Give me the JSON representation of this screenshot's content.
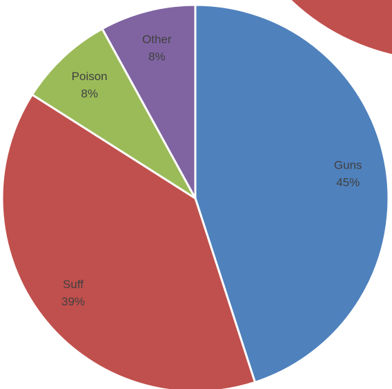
{
  "chart_data": {
    "type": "pie",
    "categories": [
      "Guns",
      "Suff",
      "Poison",
      "Other"
    ],
    "values": [
      45,
      39,
      8,
      8
    ],
    "value_labels": [
      "45%",
      "39%",
      "8%",
      "8%"
    ],
    "colors": [
      "#4f81bd",
      "#c0504d",
      "#9bbb59",
      "#8064a2"
    ]
  }
}
